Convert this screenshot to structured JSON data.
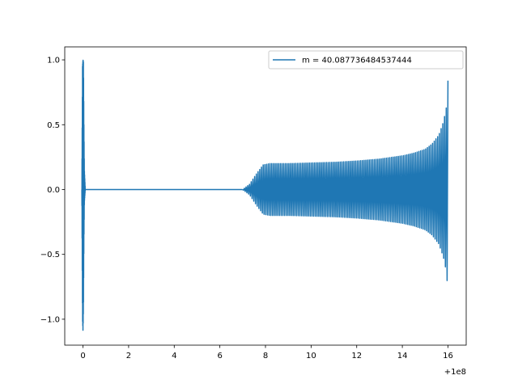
{
  "chart_data": {
    "type": "line",
    "title": "",
    "xlabel": "",
    "ylabel": "",
    "x_offset_label": "+1e8",
    "xlim": [
      -0.8,
      16.8
    ],
    "ylim": [
      -1.2,
      1.1
    ],
    "xticks": [
      0,
      2,
      4,
      6,
      8,
      10,
      12,
      14,
      16
    ],
    "xtick_labels": [
      "0",
      "2",
      "4",
      "6",
      "8",
      "10",
      "12",
      "14",
      "16"
    ],
    "yticks": [
      -1.0,
      -0.5,
      0.0,
      0.5,
      1.0
    ],
    "ytick_labels": [
      "−1.0",
      "−0.5",
      "0.0",
      "0.5",
      "1.0"
    ],
    "grid": false,
    "legend_position": "top-right",
    "series": [
      {
        "name": "m = 40.087736484537444",
        "color": "#1f77b4",
        "segments": [
          {
            "description_kind": "spike",
            "x": [
              -0.05,
              -0.02,
              0.0,
              0.02,
              0.04,
              0.06,
              0.1
            ],
            "y_upper": [
              0.0,
              0.95,
              1.0,
              0.98,
              0.5,
              0.15,
              0.0
            ],
            "y_lower": [
              0.0,
              -1.0,
              -1.09,
              -0.9,
              -0.4,
              -0.1,
              0.0
            ]
          },
          {
            "description_kind": "flat",
            "x": [
              0.1,
              7.0
            ],
            "y": [
              0.0,
              0.0
            ]
          },
          {
            "description_kind": "oscillation-envelope",
            "x": [
              7.0,
              7.3,
              7.6,
              7.9,
              8.2,
              9,
              10,
              11,
              12,
              13,
              14,
              14.5,
              15,
              15.3,
              15.6,
              15.8,
              15.95,
              16.0
            ],
            "y_upper": [
              0.0,
              0.04,
              0.12,
              0.19,
              0.2,
              0.2,
              0.205,
              0.21,
              0.22,
              0.235,
              0.26,
              0.28,
              0.31,
              0.35,
              0.42,
              0.52,
              0.65,
              0.84
            ],
            "y_lower": [
              0.0,
              -0.04,
              -0.12,
              -0.19,
              -0.2,
              -0.2,
              -0.205,
              -0.21,
              -0.22,
              -0.235,
              -0.26,
              -0.28,
              -0.31,
              -0.35,
              -0.42,
              -0.52,
              -0.65,
              -0.86
            ],
            "cycles": 120
          }
        ]
      }
    ]
  }
}
